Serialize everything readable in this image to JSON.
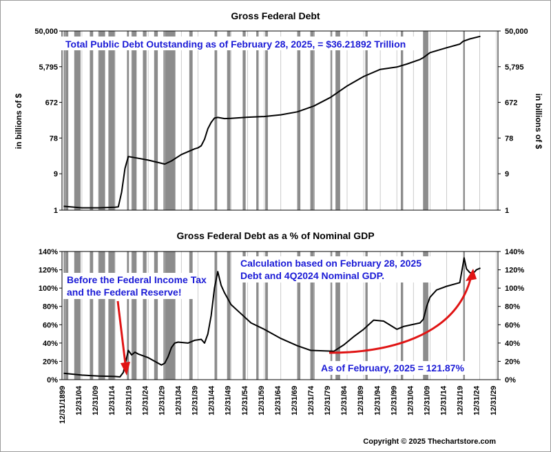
{
  "chart_data": [
    {
      "type": "line",
      "title": "Gross Federal Debt",
      "ylabel": "in billions of $",
      "y_scale": "log",
      "ylim": [
        1,
        50000
      ],
      "y_ticks": [
        "1",
        "9",
        "78",
        "672",
        "5,795",
        "50,000"
      ],
      "annotation": "Total Public Debt Outstanding as of February 28, 2025, = $36.21892 Trillion",
      "x": [
        1899.5,
        1905,
        1910,
        1915,
        1916,
        1917,
        1918,
        1919,
        1922,
        1925,
        1930,
        1932,
        1935,
        1939,
        1940,
        1941,
        1942,
        1943,
        1944,
        1945,
        1946,
        1948,
        1950,
        1955,
        1960,
        1965,
        1970,
        1975,
        1980,
        1985,
        1990,
        1995,
        2000,
        2003,
        2007,
        2008,
        2010,
        2015,
        2019,
        2020,
        2022,
        2025.2
      ],
      "values": [
        1.26,
        1.15,
        1.15,
        1.19,
        1.22,
        2.98,
        12.5,
        25.5,
        23,
        20.5,
        16.2,
        19.5,
        28.7,
        40.4,
        43,
        49,
        72.4,
        136.7,
        201,
        260,
        271,
        252,
        257,
        274,
        286,
        317,
        380,
        541,
        908,
        1817,
        3206,
        4921,
        5674,
        6783,
        8951,
        10025,
        13529,
        18151,
        22719,
        26945,
        30929,
        36219
      ]
    },
    {
      "type": "line",
      "title": "Gross Federal Debt as a % of Nominal GDP",
      "ylim": [
        0,
        140
      ],
      "y_ticks": [
        "0%",
        "20%",
        "40%",
        "60%",
        "80%",
        "100%",
        "120%",
        "140%"
      ],
      "annotations": [
        "Calculation based on February 28, 2025",
        "Debt and 4Q2024 Nominal GDP.",
        "Before the Federal Income Tax",
        "and the Federal Reserve!",
        "As of  February, 2025 = 121.87%"
      ],
      "x": [
        1899.5,
        1905,
        1910,
        1915,
        1916.5,
        1917.5,
        1919,
        1920,
        1921,
        1922,
        1925,
        1929,
        1930,
        1931,
        1932,
        1933,
        1934,
        1937,
        1939,
        1941,
        1942,
        1943,
        1944,
        1945,
        1946,
        1947,
        1948,
        1950,
        1953,
        1956,
        1960,
        1965,
        1970,
        1974,
        1981,
        1984,
        1987,
        1990,
        1993,
        1996,
        2000,
        2002,
        2007,
        2008,
        2009,
        2010,
        2012,
        2015,
        2019,
        2020.3,
        2021,
        2022,
        2023,
        2024,
        2025.2
      ],
      "values": [
        7,
        5,
        4,
        3.5,
        3,
        8,
        32,
        27,
        30,
        28,
        24,
        16,
        18,
        25,
        35,
        40,
        41,
        40,
        43,
        44,
        40,
        50,
        70,
        100,
        118,
        103,
        95,
        82,
        72,
        62,
        55,
        45,
        37,
        32,
        31,
        38,
        47,
        55,
        65,
        64,
        55,
        58,
        62,
        66,
        80,
        90,
        98,
        102,
        106,
        133,
        121,
        117,
        116,
        120,
        121.87
      ]
    }
  ],
  "x_axis": {
    "labels": [
      "12/31/1899",
      "12/31/04",
      "12/31/09",
      "12/31/14",
      "12/31/19",
      "12/31/24",
      "12/31/29",
      "12/31/34",
      "12/31/39",
      "12/31/44",
      "12/31/49",
      "12/31/54",
      "12/31/59",
      "12/31/64",
      "12/31/69",
      "12/31/74",
      "12/31/79",
      "12/31/84",
      "12/31/89",
      "12/31/94",
      "12/31/99",
      "12/31/04",
      "12/31/09",
      "12/31/14",
      "12/31/19",
      "12/31/24",
      "12/31/29"
    ],
    "years": [
      1899,
      1904,
      1909,
      1914,
      1919,
      1924,
      1929,
      1934,
      1939,
      1944,
      1949,
      1954,
      1959,
      1964,
      1969,
      1974,
      1979,
      1984,
      1989,
      1994,
      1999,
      2004,
      2009,
      2014,
      2019,
      2024,
      2029
    ]
  },
  "recessions": [
    [
      1899.5,
      1900.9
    ],
    [
      1902.7,
      1904.6
    ],
    [
      1907.4,
      1908.4
    ],
    [
      1910.0,
      1912.0
    ],
    [
      1913.0,
      1914.9
    ],
    [
      1918.6,
      1919.2
    ],
    [
      1920.0,
      1921.5
    ],
    [
      1923.4,
      1924.5
    ],
    [
      1926.8,
      1927.9
    ],
    [
      1929.6,
      1933.2
    ],
    [
      1937.4,
      1938.4
    ],
    [
      1945.1,
      1945.8
    ],
    [
      1948.8,
      1949.8
    ],
    [
      1953.5,
      1954.4
    ],
    [
      1957.6,
      1958.3
    ],
    [
      1960.3,
      1961.1
    ],
    [
      1969.9,
      1970.9
    ],
    [
      1973.9,
      1975.2
    ],
    [
      1980.0,
      1980.5
    ],
    [
      1981.5,
      1982.9
    ],
    [
      1990.5,
      1991.2
    ],
    [
      2001.2,
      2001.9
    ],
    [
      2007.9,
      2009.5
    ],
    [
      2020.1,
      2020.4
    ]
  ],
  "recession_color": "#8c8c8c",
  "line_color": "#000000",
  "annotation_color": "#1a1ad6",
  "arrow_color": "#e01414",
  "copyright": "Copyright © 2025 Thechartstore.com"
}
